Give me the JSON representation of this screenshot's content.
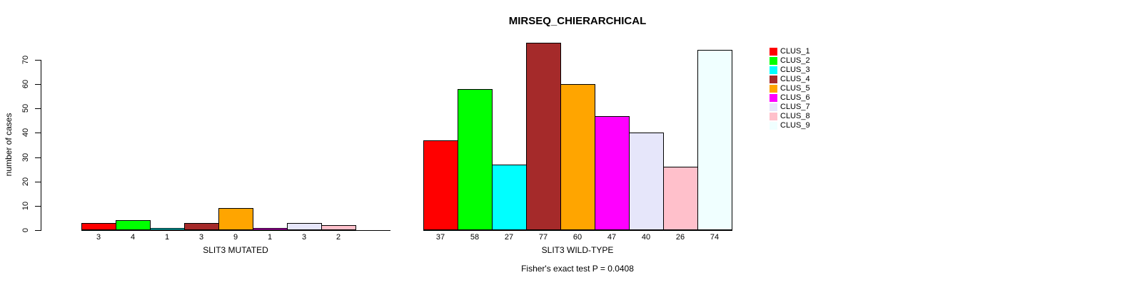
{
  "title": "MIRSEQ_CHIERARCHICAL",
  "footer": "Fisher's exact test P = 0.0408",
  "y_axis": {
    "label": "number of cases",
    "ticks": [
      0,
      10,
      20,
      30,
      40,
      50,
      60,
      70
    ]
  },
  "legend": {
    "position": "right",
    "entries": [
      {
        "label": "CLUS_1",
        "color": "#FF0000"
      },
      {
        "label": "CLUS_2",
        "color": "#00FF00"
      },
      {
        "label": "CLUS_3",
        "color": "#00FFFF"
      },
      {
        "label": "CLUS_4",
        "color": "#A52A2A"
      },
      {
        "label": "CLUS_5",
        "color": "#FFA500"
      },
      {
        "label": "CLUS_6",
        "color": "#FF00FF"
      },
      {
        "label": "CLUS_7",
        "color": "#E6E6FA"
      },
      {
        "label": "CLUS_8",
        "color": "#FFC0CB"
      },
      {
        "label": "CLUS_9",
        "color": "#F0FFFF"
      }
    ]
  },
  "chart_data": [
    {
      "type": "bar",
      "panel": "left",
      "xlabel": "SLIT3 MUTATED",
      "ylabel": "number of cases",
      "series_labels": [
        "CLUS_1",
        "CLUS_2",
        "CLUS_3",
        "CLUS_4",
        "CLUS_5",
        "CLUS_6",
        "CLUS_7",
        "CLUS_8",
        "CLUS_9"
      ],
      "categories": [
        "3",
        "4",
        "1",
        "3",
        "9",
        "1",
        "3",
        "2",
        ""
      ],
      "values": [
        3,
        4,
        1,
        3,
        9,
        1,
        3,
        2,
        0
      ],
      "colors": [
        "#FF0000",
        "#00FF00",
        "#00FFFF",
        "#A52A2A",
        "#FFA500",
        "#FF00FF",
        "#E6E6FA",
        "#FFC0CB",
        "#F0FFFF"
      ],
      "ylim": [
        0,
        77
      ],
      "grid": false,
      "bar_labels_shown_below_bars": true
    },
    {
      "type": "bar",
      "panel": "right",
      "xlabel": "SLIT3 WILD-TYPE",
      "ylabel": "number of cases",
      "series_labels": [
        "CLUS_1",
        "CLUS_2",
        "CLUS_3",
        "CLUS_4",
        "CLUS_5",
        "CLUS_6",
        "CLUS_7",
        "CLUS_8",
        "CLUS_9"
      ],
      "categories": [
        "37",
        "58",
        "27",
        "77",
        "60",
        "47",
        "40",
        "26",
        "74"
      ],
      "values": [
        37,
        58,
        27,
        77,
        60,
        47,
        40,
        26,
        74
      ],
      "colors": [
        "#FF0000",
        "#00FF00",
        "#00FFFF",
        "#A52A2A",
        "#FFA500",
        "#FF00FF",
        "#E6E6FA",
        "#FFC0CB",
        "#F0FFFF"
      ],
      "ylim": [
        0,
        77
      ],
      "grid": false,
      "bar_labels_shown_below_bars": true
    }
  ]
}
